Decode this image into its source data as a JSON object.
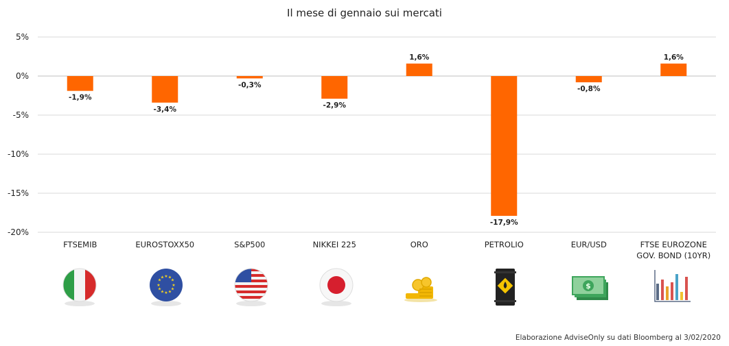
{
  "title": "Il mese di gennaio sui mercati",
  "source_note": "Elaborazione AdviseOnly su dati Bloomberg al 3/02/2020",
  "colors": {
    "bar": "#ff6600",
    "grid": "#d9d9d9",
    "axis": "#bfbfbf"
  },
  "chart_data": {
    "type": "bar",
    "title": "Il mese di gennaio sui mercati",
    "categories": [
      "FTSEMIB",
      "EUROSTOXX50",
      "S&P500",
      "NIKKEI 225",
      "ORO",
      "PETROLIO",
      "EUR/USD",
      "FTSE EUROZONE GOV. BOND (10YR)"
    ],
    "category_lines": [
      [
        "FTSEMIB"
      ],
      [
        "EUROSTOXX50"
      ],
      [
        "S&P500"
      ],
      [
        "NIKKEI 225"
      ],
      [
        "ORO"
      ],
      [
        "PETROLIO"
      ],
      [
        "EUR/USD"
      ],
      [
        "FTSE EUROZONE",
        "GOV. BOND (10YR)"
      ]
    ],
    "values": [
      -1.9,
      -3.4,
      -0.3,
      -2.9,
      1.6,
      -17.9,
      -0.8,
      1.6
    ],
    "data_labels": [
      "-1,9%",
      "-3,4%",
      "-0,3%",
      "-2,9%",
      "1,6%",
      "-17,9%",
      "-0,8%",
      "1,6%"
    ],
    "yticks": [
      5,
      0,
      -5,
      -10,
      -15,
      -20
    ],
    "ytick_labels": [
      "5%",
      "0%",
      "-5%",
      "-10%",
      "-15%",
      "-20%"
    ],
    "ylim": [
      -20,
      5
    ],
    "grid": true,
    "legend": "none"
  },
  "icons": [
    "italy-flag-icon",
    "eu-flag-icon",
    "us-flag-icon",
    "japan-flag-icon",
    "gold-coins-icon",
    "oil-barrel-icon",
    "banknotes-icon",
    "bar-chart-icon"
  ]
}
